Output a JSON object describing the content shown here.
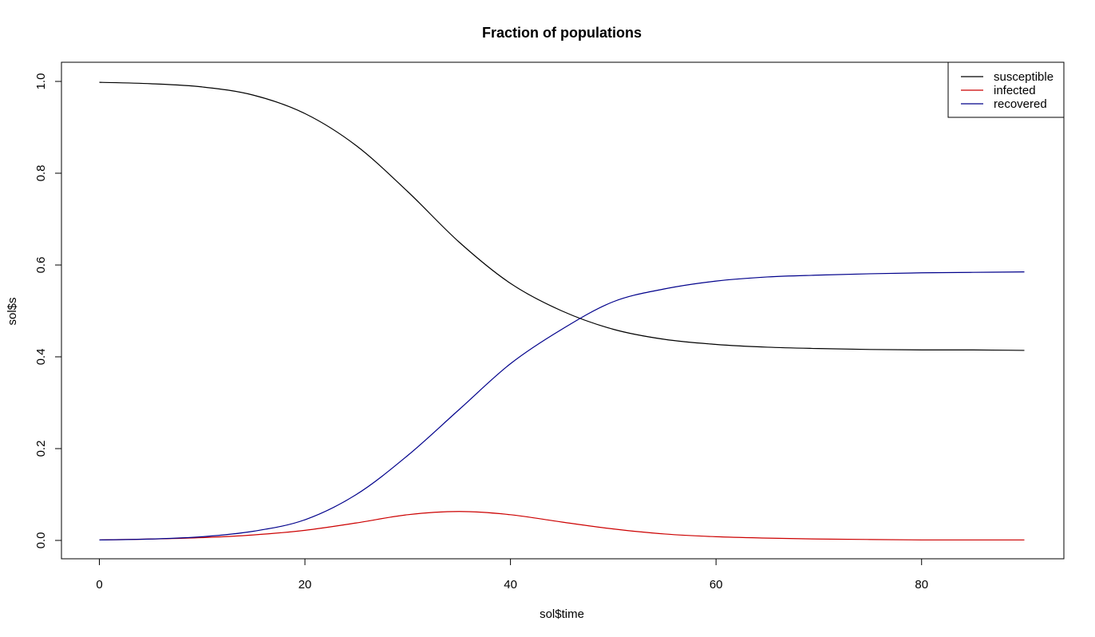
{
  "chart_data": {
    "type": "line",
    "title": "Fraction of populations",
    "xlabel": "sol$time",
    "ylabel": "sol$s",
    "xlim": [
      0,
      90
    ],
    "ylim": [
      0,
      1
    ],
    "x_ticks": [
      0,
      20,
      40,
      60,
      80
    ],
    "y_ticks": [
      0.0,
      0.2,
      0.4,
      0.6,
      0.8,
      1.0
    ],
    "x_tick_labels": [
      "0",
      "20",
      "40",
      "60",
      "80"
    ],
    "y_tick_labels": [
      "0.0",
      "0.2",
      "0.4",
      "0.6",
      "0.8",
      "1.0"
    ],
    "grid": false,
    "legend_position": "top-right",
    "x": [
      0,
      5,
      10,
      15,
      20,
      25,
      30,
      35,
      40,
      45,
      50,
      55,
      60,
      65,
      70,
      75,
      80,
      85,
      90
    ],
    "series": [
      {
        "name": "susceptible",
        "color": "#000000",
        "values": [
          0.998,
          0.995,
          0.988,
          0.97,
          0.93,
          0.86,
          0.76,
          0.65,
          0.56,
          0.5,
          0.46,
          0.438,
          0.427,
          0.421,
          0.418,
          0.416,
          0.415,
          0.415,
          0.414
        ]
      },
      {
        "name": "infected",
        "color": "#cc0000",
        "values": [
          0.001,
          0.003,
          0.006,
          0.012,
          0.022,
          0.038,
          0.056,
          0.063,
          0.056,
          0.04,
          0.025,
          0.014,
          0.008,
          0.005,
          0.003,
          0.002,
          0.001,
          0.001,
          0.001
        ]
      },
      {
        "name": "recovered",
        "color": "#00008b",
        "values": [
          0.001,
          0.003,
          0.008,
          0.02,
          0.045,
          0.1,
          0.185,
          0.285,
          0.385,
          0.46,
          0.52,
          0.548,
          0.565,
          0.574,
          0.578,
          0.581,
          0.583,
          0.584,
          0.585
        ]
      }
    ]
  }
}
